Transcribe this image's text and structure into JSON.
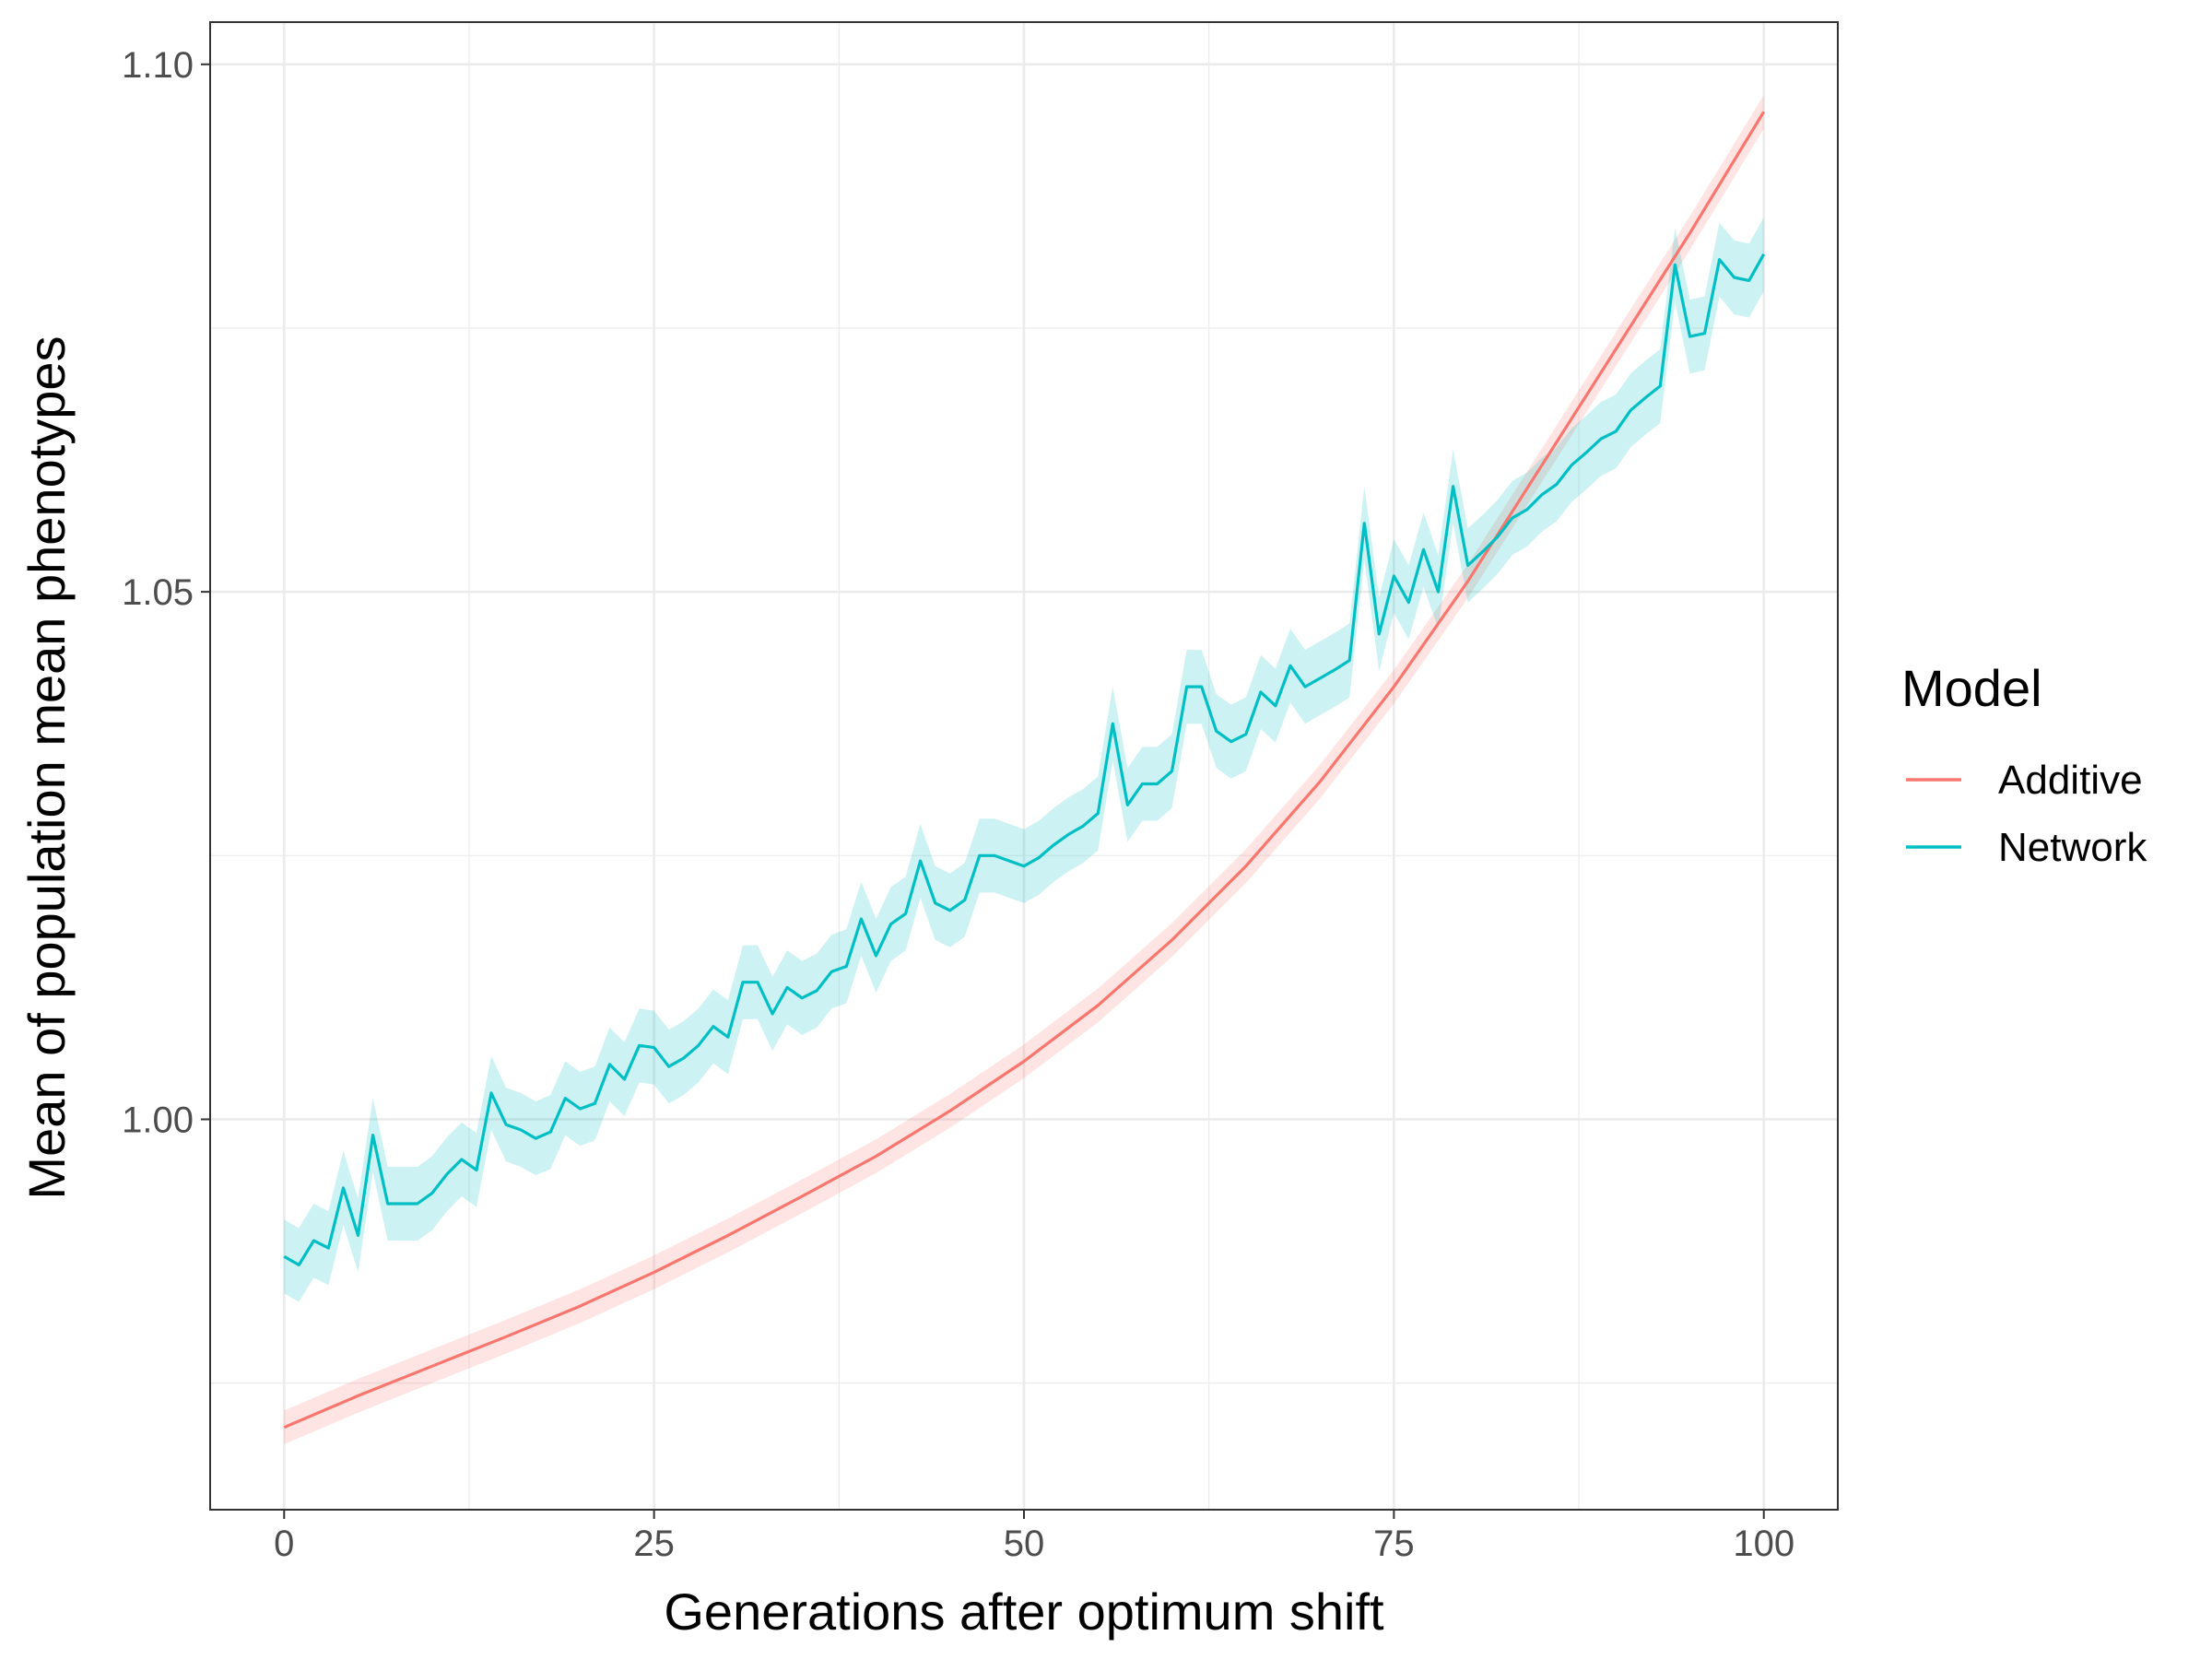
{
  "chart_data": {
    "type": "line",
    "title": "",
    "xlabel": "Generations after optimum shift",
    "ylabel": "Mean of population mean phenotypes",
    "xlim": [
      -5,
      105
    ],
    "ylim": [
      0.963,
      1.104
    ],
    "xticks": [
      0,
      25,
      50,
      75,
      100
    ],
    "xtick_labels": [
      "0",
      "25",
      "50",
      "75",
      "100"
    ],
    "yticks": [
      1.0,
      1.05,
      1.1
    ],
    "ytick_labels": [
      "1.00",
      "1.05",
      "1.10"
    ],
    "grid": true,
    "legend": {
      "title": "Model",
      "position": "right"
    },
    "series": [
      {
        "name": "Additive",
        "color": "#F8766D",
        "ribbon_color": "#F8766D",
        "x": [
          0,
          5,
          10,
          15,
          20,
          25,
          30,
          35,
          40,
          45,
          50,
          55,
          60,
          65,
          70,
          75,
          80,
          85,
          90,
          95,
          100
        ],
        "y": [
          0.9708,
          0.9738,
          0.9766,
          0.9794,
          0.9823,
          0.9855,
          0.989,
          0.9927,
          0.9965,
          1.0008,
          1.0055,
          1.0108,
          1.017,
          1.024,
          1.032,
          1.041,
          1.051,
          1.062,
          1.073,
          1.084,
          1.0955
        ],
        "band": 0.0016
      },
      {
        "name": "Network",
        "color": "#00BFC4",
        "ribbon_color": "#00BFC4",
        "x": [
          0,
          1,
          2,
          3,
          4,
          5,
          6,
          7,
          8,
          9,
          10,
          11,
          12,
          13,
          14,
          15,
          16,
          17,
          18,
          19,
          20,
          21,
          22,
          23,
          24,
          25,
          26,
          27,
          28,
          29,
          30,
          31,
          32,
          33,
          34,
          35,
          36,
          37,
          38,
          39,
          40,
          41,
          42,
          43,
          44,
          45,
          46,
          47,
          48,
          49,
          50,
          51,
          52,
          53,
          54,
          55,
          56,
          57,
          58,
          59,
          60,
          61,
          62,
          63,
          64,
          65,
          66,
          67,
          68,
          69,
          70,
          71,
          72,
          73,
          74,
          75,
          76,
          77,
          78,
          79,
          80,
          81,
          82,
          83,
          84,
          85,
          86,
          87,
          88,
          89,
          90,
          91,
          92,
          93,
          94,
          95,
          96,
          97,
          98,
          99,
          100
        ],
        "y": [
          0.987,
          0.9862,
          0.9885,
          0.9878,
          0.9935,
          0.989,
          0.9985,
          0.992,
          0.992,
          0.992,
          0.993,
          0.9948,
          0.9962,
          0.9952,
          1.0025,
          0.9995,
          0.999,
          0.9982,
          0.9988,
          1.002,
          1.001,
          1.0015,
          1.0052,
          1.0038,
          1.007,
          1.0068,
          1.005,
          1.0058,
          1.007,
          1.0088,
          1.0078,
          1.013,
          1.013,
          1.01,
          1.0125,
          1.0115,
          1.0122,
          1.014,
          1.0145,
          1.019,
          1.0155,
          1.0185,
          1.0195,
          1.0245,
          1.0205,
          1.0198,
          1.0208,
          1.025,
          1.025,
          1.0245,
          1.024,
          1.0248,
          1.026,
          1.027,
          1.0278,
          1.029,
          1.0375,
          1.0298,
          1.0318,
          1.0318,
          1.033,
          1.041,
          1.041,
          1.0368,
          1.0358,
          1.0365,
          1.0405,
          1.0392,
          1.043,
          1.041,
          1.0418,
          1.0426,
          1.0435,
          1.0565,
          1.046,
          1.0515,
          1.049,
          1.054,
          1.05,
          1.06,
          1.0525,
          1.0538,
          1.0552,
          1.057,
          1.0578,
          1.0592,
          1.0602,
          1.062,
          1.0632,
          1.0645,
          1.0652,
          1.0672,
          1.0684,
          1.0695,
          1.081,
          1.0742,
          1.0745,
          1.0815,
          1.0798,
          1.0795,
          1.082
        ],
        "band": 0.0035
      }
    ]
  }
}
